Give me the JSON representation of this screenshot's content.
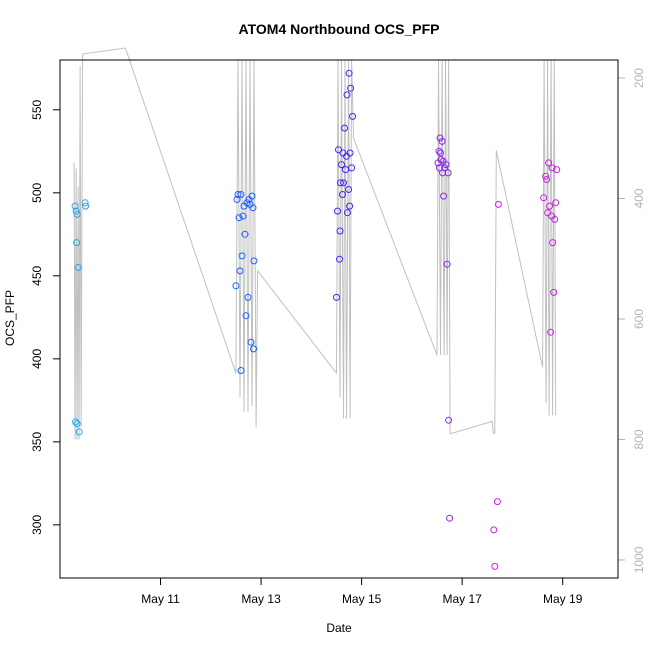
{
  "chart_data": {
    "type": "scatter",
    "title": "ATOM4 Northbound OCS_PFP",
    "xlabel": "Date",
    "ylabel": "OCS_PFP",
    "x_start_date": "May 9",
    "xlim_days": [
      0,
      11.1
    ],
    "ylim": [
      268,
      580
    ],
    "yticks": [
      300,
      350,
      400,
      450,
      500,
      550
    ],
    "xticks": [
      {
        "day": 2,
        "label": "May 11"
      },
      {
        "day": 4,
        "label": "May 13"
      },
      {
        "day": 6,
        "label": "May 15"
      },
      {
        "day": 8,
        "label": "May 17"
      },
      {
        "day": 10,
        "label": "May 19"
      }
    ],
    "right_axis": {
      "label_color": "#b3b3b3",
      "ylim_inverted": [
        1030,
        170
      ],
      "ticks": [
        200,
        400,
        600,
        800,
        1000
      ]
    },
    "series": [
      {
        "color": "#29a8e8",
        "points": [
          [
            0.3,
            492
          ],
          [
            0.32,
            489
          ],
          [
            0.34,
            487
          ],
          [
            0.33,
            470
          ],
          [
            0.36,
            455
          ],
          [
            0.31,
            362
          ],
          [
            0.34,
            361
          ],
          [
            0.38,
            356
          ],
          [
            0.5,
            494
          ],
          [
            0.51,
            492
          ]
        ]
      },
      {
        "color": "#1e5fff",
        "points": [
          [
            3.5,
            444
          ],
          [
            3.52,
            496
          ],
          [
            3.54,
            499
          ],
          [
            3.56,
            485
          ],
          [
            3.58,
            453
          ],
          [
            3.6,
            499
          ],
          [
            3.62,
            462
          ],
          [
            3.64,
            486
          ],
          [
            3.66,
            492
          ],
          [
            3.68,
            475
          ],
          [
            3.7,
            426
          ],
          [
            3.72,
            494
          ],
          [
            3.74,
            437
          ],
          [
            3.76,
            496
          ],
          [
            3.78,
            493
          ],
          [
            3.8,
            410
          ],
          [
            3.82,
            498
          ],
          [
            3.84,
            491
          ],
          [
            3.85,
            406
          ],
          [
            3.86,
            459
          ],
          [
            3.6,
            393
          ]
        ]
      },
      {
        "color": "#4428ee",
        "points": [
          [
            5.5,
            437
          ],
          [
            5.52,
            489
          ],
          [
            5.54,
            526
          ],
          [
            5.56,
            460
          ],
          [
            5.57,
            477
          ],
          [
            5.58,
            506
          ],
          [
            5.6,
            517
          ],
          [
            5.62,
            499
          ],
          [
            5.63,
            524
          ],
          [
            5.64,
            506
          ],
          [
            5.66,
            539
          ],
          [
            5.68,
            514
          ],
          [
            5.7,
            522
          ],
          [
            5.71,
            559
          ],
          [
            5.72,
            488
          ],
          [
            5.74,
            502
          ],
          [
            5.75,
            572
          ],
          [
            5.76,
            492
          ],
          [
            5.77,
            524
          ],
          [
            5.78,
            563
          ],
          [
            5.8,
            515
          ],
          [
            5.82,
            546
          ]
        ]
      },
      {
        "color": "#8a28e8",
        "points": [
          [
            7.52,
            518
          ],
          [
            7.54,
            525
          ],
          [
            7.55,
            515
          ],
          [
            7.56,
            533
          ],
          [
            7.57,
            524
          ],
          [
            7.58,
            520
          ],
          [
            7.6,
            531
          ],
          [
            7.61,
            512
          ],
          [
            7.62,
            519
          ],
          [
            7.63,
            498
          ],
          [
            7.65,
            515
          ],
          [
            7.68,
            517
          ],
          [
            7.7,
            457
          ],
          [
            7.72,
            512
          ],
          [
            7.73,
            363
          ],
          [
            7.75,
            304
          ]
        ]
      },
      {
        "color": "#cc22dd",
        "points": [
          [
            8.65,
            275
          ],
          [
            8.63,
            297
          ],
          [
            8.7,
            314
          ],
          [
            8.72,
            493
          ],
          [
            9.62,
            497
          ],
          [
            9.66,
            510
          ],
          [
            9.68,
            508
          ],
          [
            9.7,
            488
          ],
          [
            9.72,
            518
          ],
          [
            9.74,
            492
          ],
          [
            9.76,
            416
          ],
          [
            9.78,
            486
          ],
          [
            9.79,
            515
          ],
          [
            9.8,
            470
          ],
          [
            9.82,
            440
          ],
          [
            9.84,
            484
          ],
          [
            9.86,
            494
          ],
          [
            9.88,
            514
          ]
        ]
      }
    ],
    "gray_line": {
      "color": "#c0c0c0",
      "note_axis": "right",
      "points": [
        [
          0.28,
          340
        ],
        [
          0.3,
          800
        ],
        [
          0.32,
          350
        ],
        [
          0.34,
          800
        ],
        [
          0.36,
          380
        ],
        [
          0.38,
          800
        ],
        [
          0.4,
          180
        ],
        [
          0.42,
          780
        ],
        [
          0.45,
          160
        ],
        [
          1.3,
          150
        ],
        [
          3.5,
          690
        ],
        [
          3.54,
          170
        ],
        [
          3.58,
          730
        ],
        [
          3.62,
          170
        ],
        [
          3.66,
          755
        ],
        [
          3.7,
          170
        ],
        [
          3.74,
          755
        ],
        [
          3.78,
          170
        ],
        [
          3.82,
          745
        ],
        [
          3.86,
          170
        ],
        [
          3.9,
          780
        ],
        [
          3.93,
          520
        ],
        [
          5.5,
          690
        ],
        [
          5.53,
          170
        ],
        [
          5.57,
          730
        ],
        [
          5.6,
          170
        ],
        [
          5.64,
          765
        ],
        [
          5.67,
          170
        ],
        [
          5.7,
          765
        ],
        [
          5.74,
          170
        ],
        [
          5.77,
          765
        ],
        [
          5.8,
          170
        ],
        [
          5.84,
          300
        ],
        [
          7.5,
          660
        ],
        [
          7.53,
          170
        ],
        [
          7.57,
          660
        ],
        [
          7.6,
          170
        ],
        [
          7.64,
          660
        ],
        [
          7.67,
          170
        ],
        [
          7.7,
          660
        ],
        [
          7.73,
          170
        ],
        [
          7.76,
          790
        ],
        [
          7.79,
          790
        ],
        [
          8.6,
          770
        ],
        [
          8.62,
          790
        ],
        [
          8.65,
          790
        ],
        [
          8.68,
          320
        ],
        [
          9.6,
          680
        ],
        [
          9.63,
          170
        ],
        [
          9.67,
          740
        ],
        [
          9.7,
          170
        ],
        [
          9.73,
          760
        ],
        [
          9.77,
          170
        ],
        [
          9.8,
          760
        ],
        [
          9.83,
          170
        ],
        [
          9.86,
          760
        ]
      ]
    }
  }
}
